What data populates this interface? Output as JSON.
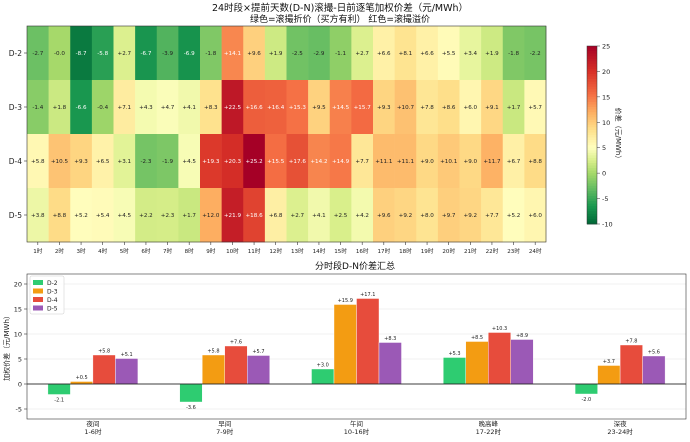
{
  "colors": {
    "neg": "#006837",
    "mid": "#ffffbf",
    "pos": "#a50026",
    "series": [
      "#2ecc71",
      "#f39c12",
      "#e74c3c",
      "#9b59b6"
    ]
  },
  "chart_data": [
    {
      "type": "heatmap",
      "title": "24时段×提前天数(D-N)滚撮-日前逐笔加权价差（元/MWh）",
      "subtitle": "绿色=滚撮折价（买方有利）  红色=滚撮溢价",
      "rows": [
        "D-2",
        "D-3",
        "D-4",
        "D-5"
      ],
      "columns": [
        "1时",
        "2时",
        "3时",
        "4时",
        "5时",
        "6时",
        "7时",
        "8时",
        "9时",
        "10时",
        "11时",
        "12时",
        "13时",
        "14时",
        "15时",
        "16时",
        "17时",
        "18时",
        "19时",
        "20时",
        "21时",
        "22时",
        "23时",
        "24时"
      ],
      "values": [
        [
          -2.7,
          -0.0,
          -8.7,
          -5.8,
          2.7,
          -6.7,
          -3.9,
          -6.9,
          -1.8,
          14.1,
          9.6,
          1.9,
          -2.5,
          -2.9,
          -1.1,
          2.7,
          6.6,
          8.1,
          6.6,
          5.5,
          3.4,
          1.9,
          -1.8,
          -2.2
        ],
        [
          -1.4,
          1.8,
          -6.6,
          -0.4,
          7.1,
          4.3,
          4.7,
          4.1,
          8.3,
          22.5,
          16.6,
          16.4,
          15.3,
          9.5,
          14.5,
          15.7,
          9.3,
          10.7,
          7.8,
          8.6,
          6.0,
          9.1,
          1.7,
          5.7
        ],
        [
          5.8,
          10.5,
          9.3,
          6.5,
          3.1,
          -2.3,
          -1.9,
          4.5,
          19.3,
          20.3,
          25.2,
          15.5,
          17.6,
          14.2,
          14.9,
          7.7,
          11.1,
          11.1,
          9.0,
          10.1,
          9.0,
          11.7,
          6.7,
          8.8
        ],
        [
          3.8,
          8.8,
          5.2,
          5.4,
          4.5,
          2.2,
          2.3,
          1.7,
          12.0,
          21.9,
          18.6,
          6.8,
          2.7,
          4.1,
          2.5,
          4.2,
          9.6,
          9.2,
          8.0,
          9.7,
          9.2,
          7.7,
          5.2,
          6.0
        ]
      ],
      "labels": [
        [
          "-2.7",
          "-0.0",
          "-8.7",
          "-5.8",
          "+2.7",
          "-6.7",
          "-3.9",
          "-6.9",
          "-1.8",
          "+14.1",
          "+9.6",
          "+1.9",
          "-2.5",
          "-2.9",
          "-1.1",
          "+2.7",
          "+6.6",
          "+8.1",
          "+6.6",
          "+5.5",
          "+3.4",
          "+1.9",
          "-1.8",
          "-2.2"
        ],
        [
          "-1.4",
          "+1.8",
          "-6.6",
          "-0.4",
          "+7.1",
          "+4.3",
          "+4.7",
          "+4.1",
          "+8.3",
          "+22.5",
          "+16.6",
          "+16.4",
          "+15.3",
          "+9.5",
          "+14.5",
          "+15.7",
          "+9.3",
          "+10.7",
          "+7.8",
          "+8.6",
          "+6.0",
          "+9.1",
          "+1.7",
          "+5.7"
        ],
        [
          "+5.8",
          "+10.5",
          "+9.3",
          "+6.5",
          "+3.1",
          "-2.3",
          "-1.9",
          "+4.5",
          "+19.3",
          "+20.3",
          "+25.2",
          "+15.5",
          "+17.6",
          "+14.2",
          "+14.9",
          "+7.7",
          "+11.1",
          "+11.1",
          "+9.0",
          "+10.1",
          "+9.0",
          "+11.7",
          "+6.7",
          "+8.8"
        ],
        [
          "+3.8",
          "+8.8",
          "+5.2",
          "+5.4",
          "+4.5",
          "+2.2",
          "+2.3",
          "+1.7",
          "+12.0",
          "+21.9",
          "+18.6",
          "+6.8",
          "+2.7",
          "+4.1",
          "+2.5",
          "+4.2",
          "+9.6",
          "+9.2",
          "+8.0",
          "+9.7",
          "+9.2",
          "+7.7",
          "+5.2",
          "+6.0"
        ]
      ],
      "colorbar": {
        "label": "价差（元/MWh）",
        "range": [
          -10,
          25
        ],
        "ticks": [
          "25",
          "20",
          "15",
          "10",
          "5",
          "0",
          "-5",
          "-10"
        ]
      }
    },
    {
      "type": "bar",
      "title": "分时段D-N价差汇总",
      "ylabel": "加权价差（元/MWh）",
      "ylim": [
        -7,
        22
      ],
      "yticks": [
        "20",
        "15",
        "10",
        "5",
        "0",
        "-5"
      ],
      "categories": [
        "夜间\n1-6时",
        "早间\n7-9时",
        "午间\n10-16时",
        "晚高峰\n17-22时",
        "深夜\n23-24时"
      ],
      "legend": "top-left",
      "grid": true,
      "series": [
        {
          "name": "D-2",
          "values": [
            -2.1,
            -3.6,
            3.0,
            5.3,
            -2.0
          ],
          "labels": [
            "-2.1",
            "-3.6",
            "+3.0",
            "+5.3",
            "-2.0"
          ]
        },
        {
          "name": "D-3",
          "values": [
            0.5,
            5.8,
            15.9,
            8.5,
            3.7
          ],
          "labels": [
            "+0.5",
            "+5.8",
            "+15.9",
            "+8.5",
            "+3.7"
          ]
        },
        {
          "name": "D-4",
          "values": [
            5.8,
            7.6,
            17.1,
            10.3,
            7.8
          ],
          "labels": [
            "+5.8",
            "+7.6",
            "+17.1",
            "+10.3",
            "+7.8"
          ]
        },
        {
          "name": "D-5",
          "values": [
            5.1,
            5.7,
            8.3,
            8.9,
            5.6
          ],
          "labels": [
            "+5.1",
            "+5.7",
            "+8.3",
            "+8.9",
            "+5.6"
          ]
        }
      ]
    }
  ]
}
